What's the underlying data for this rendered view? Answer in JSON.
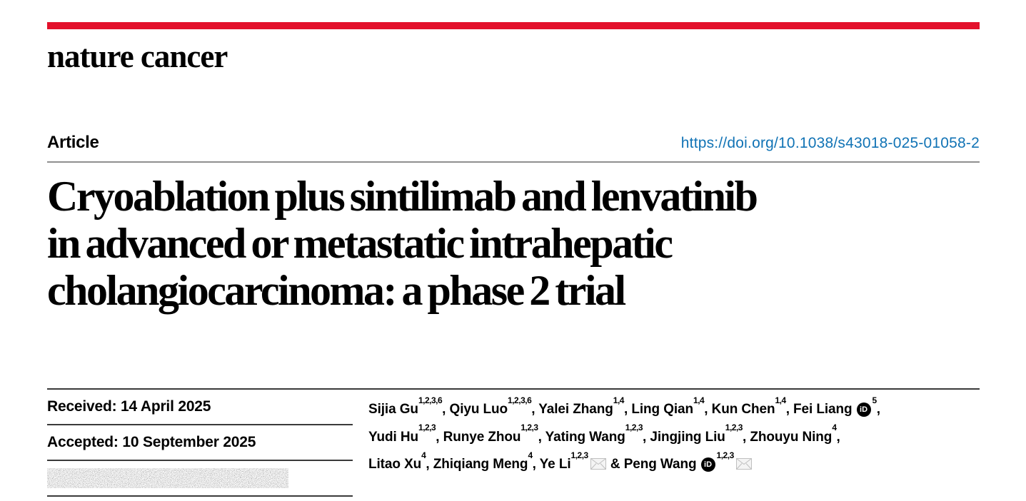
{
  "brand": {
    "journal_wordmark": "nature cancer",
    "accent_bar_color": "#e3112b"
  },
  "article_header": {
    "kicker": "Article",
    "doi_link": "https://doi.org/10.1038/s43018-025-01058-2",
    "doi_color": "#1173b5",
    "title_lines": [
      "Cryoablation plus sintilimab and lenvatinib",
      "in advanced or metastatic intrahepatic",
      "cholangiocarcinoma: a phase 2 trial"
    ]
  },
  "history": {
    "received": "Received: 14 April 2025",
    "accepted": "Accepted: 10 September 2025",
    "published_row_redacted": true
  },
  "authors": {
    "separator": ", ",
    "amp_separator": " & ",
    "list": [
      {
        "name": "Sijia Gu",
        "sup": "1,2,3,6"
      },
      {
        "name": "Qiyu Luo",
        "sup": "1,2,3,6"
      },
      {
        "name": "Yalei Zhang",
        "sup": "1,4"
      },
      {
        "name": "Ling Qian",
        "sup": "1,4"
      },
      {
        "name": "Kun Chen",
        "sup": "1,4"
      },
      {
        "name": "Fei Liang",
        "orcid": true,
        "sup": "5",
        "break_after": true
      },
      {
        "name": "Yudi Hu",
        "sup": "1,2,3"
      },
      {
        "name": "Runye Zhou",
        "sup": "1,2,3"
      },
      {
        "name": "Yating Wang",
        "sup": "1,2,3"
      },
      {
        "name": "Jingjing Liu",
        "sup": "1,2,3"
      },
      {
        "name": "Zhouyu Ning",
        "sup": "4",
        "break_after": true
      },
      {
        "name": "Litao Xu",
        "sup": "4"
      },
      {
        "name": "Zhiqiang Meng",
        "sup": "4"
      },
      {
        "name": "Ye Li",
        "sup": "1,2,3",
        "email": true,
        "amp_after": true
      },
      {
        "name": "Peng Wang",
        "orcid": true,
        "sup": "1,2,3",
        "email": true,
        "last": true
      }
    ]
  },
  "icons": {
    "orcid_label": "iD",
    "email_icon": "envelope",
    "redacted_block": "pixelated-noise"
  }
}
